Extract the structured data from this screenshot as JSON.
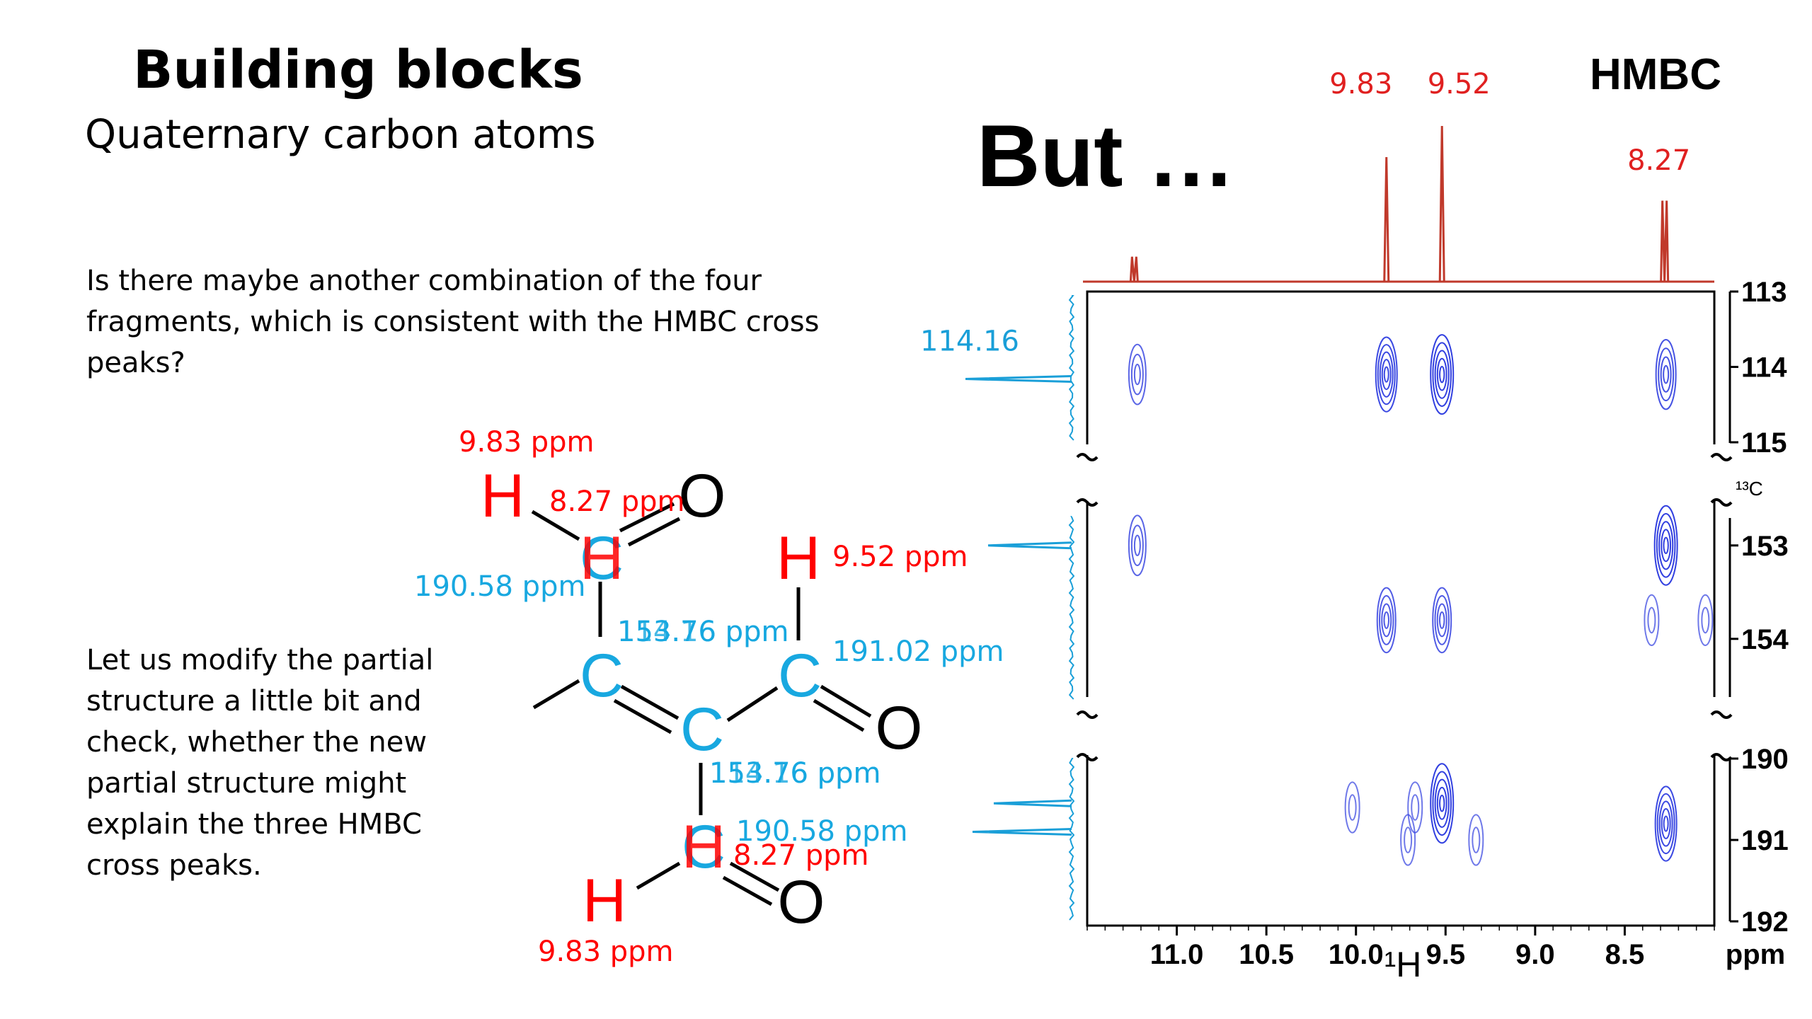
{
  "slide": {
    "title": "Building blocks",
    "subtitle": "Quaternary carbon atoms",
    "paragraph1": "Is there maybe another combination of the four fragments, which is consistent with the HMBC cross peaks?",
    "paragraph2": "Let us modify the partial structure a little bit and check, whether the new partial structure might explain the three HMBC cross peaks.",
    "but": "But …",
    "spectrum_title": "HMBC"
  },
  "colors": {
    "hydrogen": "#ff0000",
    "carbon": "#18a8e0",
    "oxygen": "#000000",
    "proton_trace": "#c0392b",
    "carbon_trace": "#1a9fd8",
    "contour": "#3240e0"
  },
  "molecule": {
    "atoms": {
      "h_top": "H",
      "o_top": "O",
      "c_ald1": "C",
      "h_ald1_overlay": "H",
      "h_mid": "H",
      "c_left": "C",
      "c_ald2": "C",
      "o_mid": "O",
      "c_center": "C",
      "c_bottom": "C",
      "h_bottom_overlay": "H",
      "h_bottom": "H",
      "o_bottom": "O"
    },
    "labels": {
      "h_top_shift": "9.83 ppm",
      "ald1_h_shift": "8.27 ppm",
      "c_ald1_shift": "190.58 ppm",
      "h_mid_shift": "9.52 ppm",
      "c_left_shift_a": "153.76 ppm",
      "c_left_shift_b": "114.16 ppm",
      "c_ald2_shift": "191.02 ppm",
      "c_center_shift_a": "153.76 ppm",
      "c_center_shift_b": "114.16 ppm",
      "c_bottom_shift": "190.58 ppm",
      "h_bottom_overlay_shift": "8.27 ppm",
      "h_bottom_shift": "9.83 ppm"
    }
  },
  "chart_data": {
    "type": "heatmap",
    "experiment": "HMBC",
    "x_axis": {
      "label": "¹H",
      "unit": "ppm",
      "range": [
        11.5,
        8.0
      ],
      "ticks": [
        "11.0",
        "10.5",
        "10.0",
        "9.5",
        "9.0",
        "8.5"
      ],
      "tick_values": [
        11.0,
        10.5,
        10.0,
        9.5,
        9.0,
        8.5
      ]
    },
    "y_axis": {
      "label": "¹³C",
      "unit": "ppm",
      "segments": [
        {
          "range": [
            113,
            115
          ],
          "ticks": [
            "113",
            "114",
            "115"
          ],
          "tick_values": [
            113,
            114,
            115
          ]
        },
        {
          "range": [
            152.6,
            154.6
          ],
          "ticks": [
            "153",
            "154"
          ],
          "tick_values": [
            153,
            154
          ]
        },
        {
          "range": [
            190,
            192
          ],
          "ticks": [
            "190",
            "191",
            "192"
          ],
          "tick_values": [
            190,
            191,
            192
          ]
        }
      ]
    },
    "proton_peaks": [
      {
        "ppm": 9.83,
        "label": "9.83",
        "height": 0.8
      },
      {
        "ppm": 9.52,
        "label": "9.52",
        "height": 1.0
      },
      {
        "ppm": 8.27,
        "label": "8.27",
        "height": 0.52,
        "split": true
      },
      {
        "ppm": 11.23,
        "label": "",
        "height": 0.16,
        "split": true
      }
    ],
    "carbon_labels": [
      {
        "ppm": 114.16,
        "label": "114.16"
      }
    ],
    "cross_peaks": [
      {
        "h": 11.22,
        "c": 114.1,
        "intensity": 0.6
      },
      {
        "h": 9.83,
        "c": 114.1,
        "intensity": 0.9
      },
      {
        "h": 9.52,
        "c": 114.1,
        "intensity": 1.0
      },
      {
        "h": 8.27,
        "c": 114.1,
        "intensity": 0.8
      },
      {
        "h": 11.22,
        "c": 153.0,
        "intensity": 0.6
      },
      {
        "h": 8.27,
        "c": 153.0,
        "intensity": 1.0
      },
      {
        "h": 9.83,
        "c": 153.8,
        "intensity": 0.7
      },
      {
        "h": 9.52,
        "c": 153.8,
        "intensity": 0.7
      },
      {
        "h": 8.35,
        "c": 153.8,
        "intensity": 0.4
      },
      {
        "h": 8.05,
        "c": 153.8,
        "intensity": 0.4
      },
      {
        "h": 10.02,
        "c": 190.6,
        "intensity": 0.4
      },
      {
        "h": 9.67,
        "c": 190.6,
        "intensity": 0.4
      },
      {
        "h": 9.52,
        "c": 190.55,
        "intensity": 1.0
      },
      {
        "h": 9.71,
        "c": 191.0,
        "intensity": 0.4
      },
      {
        "h": 9.33,
        "c": 191.0,
        "intensity": 0.4
      },
      {
        "h": 8.27,
        "c": 190.8,
        "intensity": 0.9
      }
    ],
    "ppm_label": "ppm"
  }
}
